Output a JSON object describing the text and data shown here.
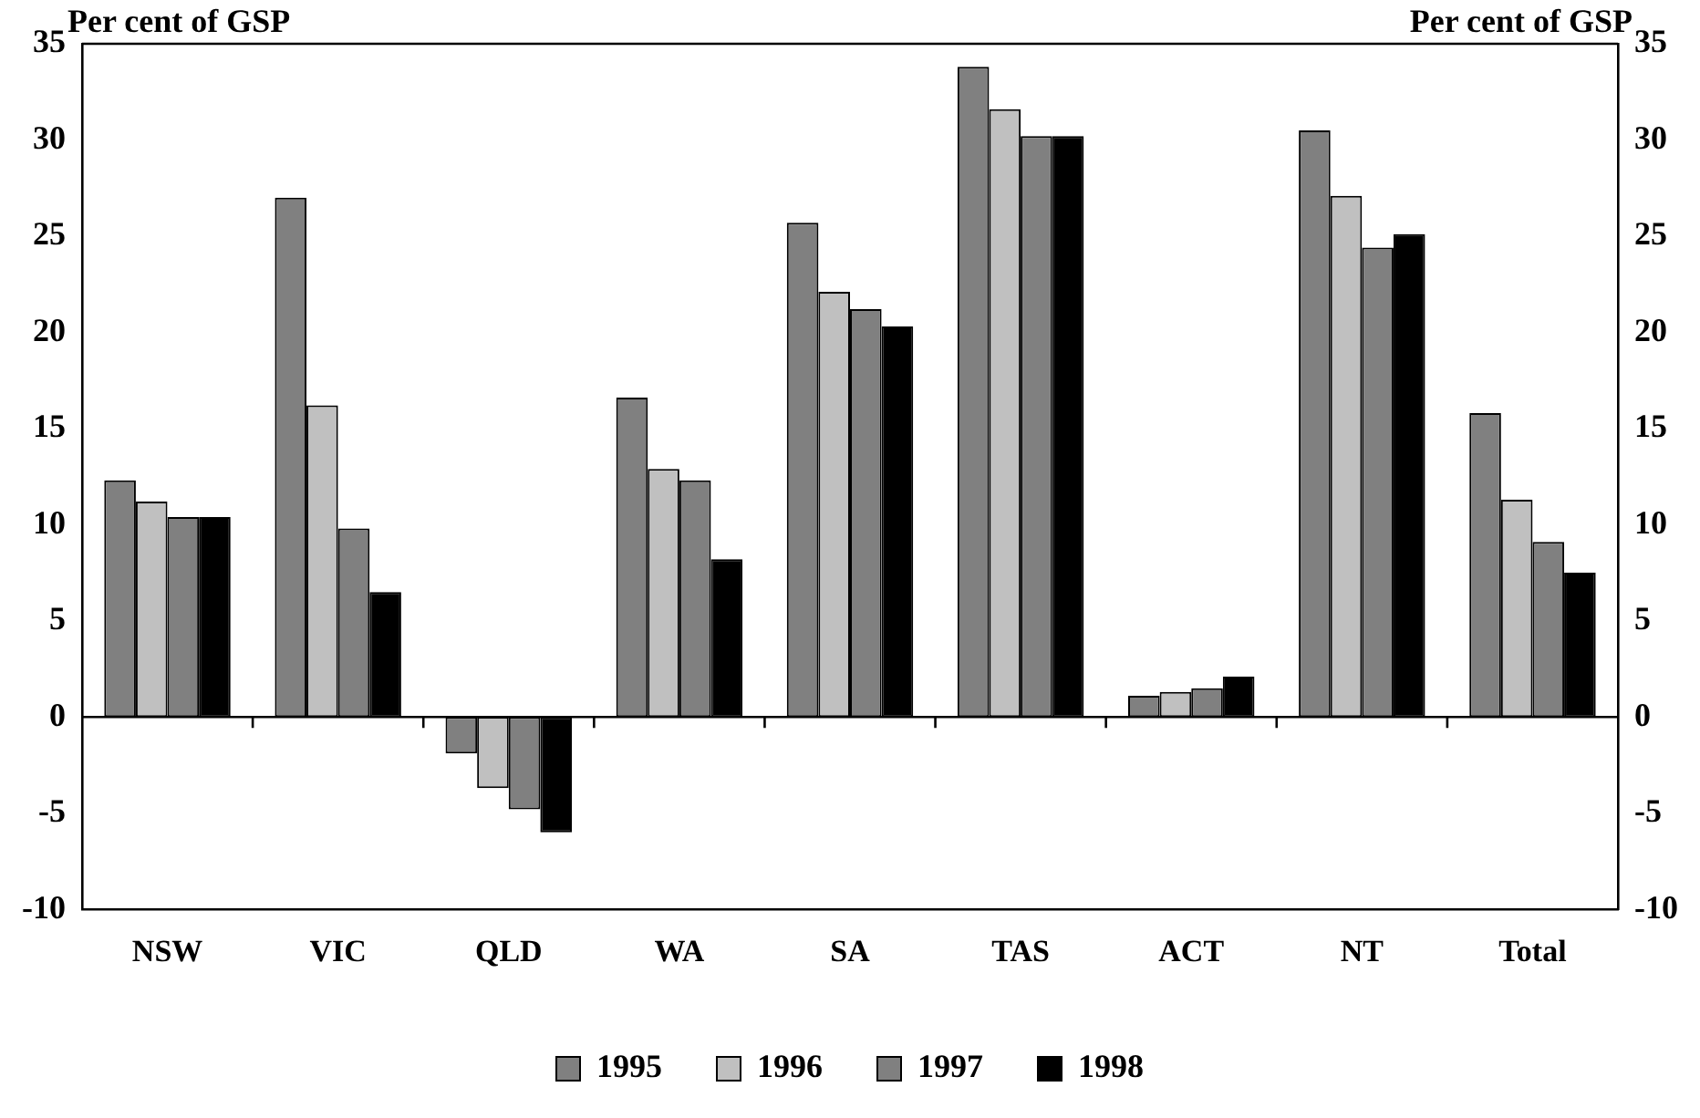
{
  "chart_data": {
    "type": "bar",
    "ylabel": "Per cent of GSP",
    "y2label": "Per cent of GSP",
    "categories": [
      "NSW",
      "VIC",
      "QLD",
      "WA",
      "SA",
      "TAS",
      "ACT",
      "NT",
      "Total"
    ],
    "series": [
      {
        "name": "1995",
        "color": "#808080",
        "values": [
          12.3,
          27.0,
          -1.9,
          16.6,
          25.7,
          33.8,
          1.1,
          30.5,
          15.8
        ]
      },
      {
        "name": "1996",
        "color": "#c0c0c0",
        "values": [
          11.2,
          16.2,
          -3.7,
          12.9,
          22.1,
          31.6,
          1.3,
          27.1,
          11.3
        ]
      },
      {
        "name": "1997",
        "color": "#808080",
        "values": [
          10.4,
          9.8,
          -4.8,
          12.3,
          21.2,
          30.2,
          1.5,
          24.4,
          9.1
        ]
      },
      {
        "name": "1998",
        "color": "#000000",
        "values": [
          10.4,
          6.5,
          -6.0,
          8.2,
          20.3,
          30.2,
          2.1,
          25.1,
          7.5
        ]
      }
    ],
    "ylim": [
      -10,
      35
    ],
    "yticks": [
      -10,
      -5,
      0,
      5,
      10,
      15,
      20,
      25,
      30,
      35
    ],
    "y2lim": [
      -10,
      35
    ],
    "y2ticks": [
      -10,
      -5,
      0,
      5,
      10,
      15,
      20,
      25,
      30,
      35
    ],
    "legend": "bottom"
  }
}
